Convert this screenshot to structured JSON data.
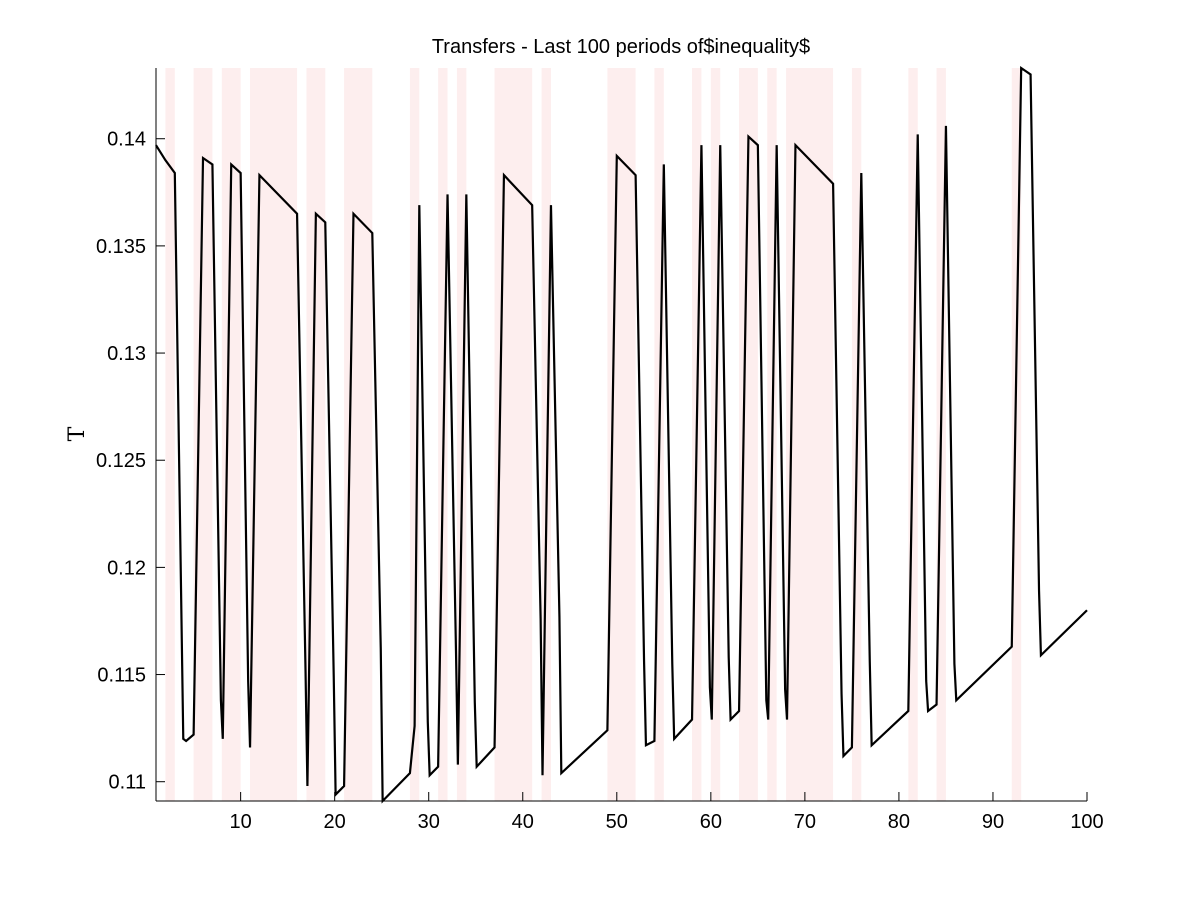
{
  "chart_data": {
    "type": "line",
    "title": "Transfers - Last 100 periods of$inequality$",
    "xlabel": "",
    "ylabel": "T",
    "xlim": [
      1,
      100
    ],
    "ylim": [
      0.1091,
      0.1433
    ],
    "xticks": [
      10,
      20,
      30,
      40,
      50,
      60,
      70,
      80,
      90,
      100
    ],
    "xtick_labels": [
      "10",
      "20",
      "30",
      "40",
      "50",
      "60",
      "70",
      "80",
      "90",
      "100"
    ],
    "yticks": [
      0.11,
      0.115,
      0.12,
      0.125,
      0.13,
      0.135,
      0.14
    ],
    "ytick_labels": [
      "0.11",
      "0.115",
      "0.12",
      "0.125",
      "0.13",
      "0.135",
      "0.14"
    ],
    "grid": false,
    "shade_color": "#fdeeee",
    "shaded_periods": [
      [
        2,
        3
      ],
      [
        5,
        7
      ],
      [
        8,
        10
      ],
      [
        11,
        16
      ],
      [
        17,
        19
      ],
      [
        21,
        24
      ],
      [
        28,
        29
      ],
      [
        31,
        32
      ],
      [
        33,
        34
      ],
      [
        37,
        41
      ],
      [
        42,
        43
      ],
      [
        49,
        52
      ],
      [
        54,
        55
      ],
      [
        58,
        59
      ],
      [
        60,
        61
      ],
      [
        63,
        65
      ],
      [
        66,
        67
      ],
      [
        68,
        73
      ],
      [
        75,
        76
      ],
      [
        81,
        82
      ],
      [
        84,
        85
      ],
      [
        92,
        93
      ]
    ],
    "series": [
      {
        "color": "#000000",
        "x": [
          1,
          2,
          3,
          3.9,
          4.2,
          5,
          6,
          7,
          7.9,
          8.1,
          9,
          10,
          10.8,
          11,
          12,
          16,
          16.9,
          17.1,
          18,
          19,
          19.9,
          20.1,
          21,
          22,
          24,
          24.9,
          25.1,
          28,
          28.5,
          29,
          29.9,
          30.1,
          31,
          32,
          32.9,
          33.1,
          34,
          34.9,
          35.1,
          37,
          38,
          41,
          41.9,
          42.1,
          43,
          43.9,
          44.1,
          49,
          50,
          52,
          52.9,
          53.1,
          54,
          55,
          55.9,
          56.1,
          58,
          59,
          59.9,
          60.1,
          61,
          61.9,
          62.1,
          63,
          64,
          65,
          65.9,
          66.1,
          67,
          67.9,
          68.1,
          69,
          73,
          73.9,
          74.1,
          75,
          76,
          76.9,
          77.1,
          81,
          82,
          82.9,
          83.1,
          84,
          85,
          85.9,
          86.1,
          92,
          93,
          94,
          94.9,
          95.1,
          100
        ],
        "values": [
          0.1397,
          0.139,
          0.1384,
          0.112,
          0.1119,
          0.1122,
          0.1391,
          0.1388,
          0.1138,
          0.112,
          0.1388,
          0.1384,
          0.1147,
          0.1116,
          0.1383,
          0.1365,
          0.1152,
          0.1098,
          0.1365,
          0.1361,
          0.1149,
          0.1094,
          0.1098,
          0.1365,
          0.1356,
          0.1162,
          0.1091,
          0.1104,
          0.1126,
          0.1369,
          0.1128,
          0.1103,
          0.1107,
          0.1374,
          0.1161,
          0.1108,
          0.1374,
          0.1137,
          0.1107,
          0.1116,
          0.1383,
          0.1369,
          0.1176,
          0.1103,
          0.1369,
          0.1177,
          0.1104,
          0.1124,
          0.1392,
          0.1383,
          0.1156,
          0.1117,
          0.1119,
          0.1388,
          0.1155,
          0.112,
          0.1129,
          0.1397,
          0.1144,
          0.1129,
          0.1397,
          0.1158,
          0.1129,
          0.1133,
          0.1401,
          0.1397,
          0.1138,
          0.1129,
          0.1397,
          0.1143,
          0.1129,
          0.1397,
          0.1379,
          0.1141,
          0.1112,
          0.1116,
          0.1384,
          0.1156,
          0.1117,
          0.1133,
          0.1402,
          0.1147,
          0.1133,
          0.1136,
          0.1406,
          0.1155,
          0.1138,
          0.1163,
          0.1433,
          0.143,
          0.1189,
          0.1159,
          0.118
        ]
      }
    ]
  }
}
